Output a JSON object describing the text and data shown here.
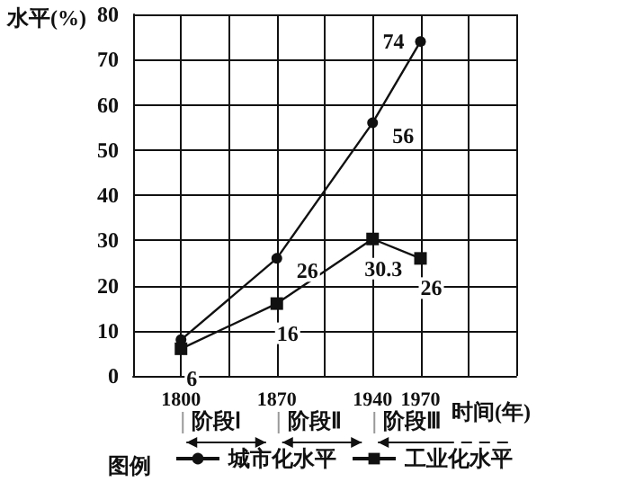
{
  "chart_data": {
    "type": "line",
    "ylabel": "水平(%)",
    "xlabel": "时间(年)",
    "legend_title": "图例",
    "categories": [
      null,
      "1800",
      null,
      "1870",
      null,
      "1940",
      "1970",
      null,
      null
    ],
    "series": [
      {
        "name": "城市化水平",
        "color": "#111111",
        "marker": "circle",
        "values": [
          null,
          8,
          null,
          26,
          null,
          56,
          74,
          null,
          null
        ],
        "value_labels": [
          null,
          null,
          null,
          "26",
          null,
          "56",
          "74",
          null,
          null
        ]
      },
      {
        "name": "工业化水平",
        "color": "#111111",
        "marker": "square",
        "values": [
          null,
          6,
          null,
          16,
          null,
          30.3,
          26,
          null,
          null
        ],
        "value_labels": [
          null,
          "6",
          null,
          "16",
          null,
          "30.3",
          "26",
          null,
          null
        ]
      }
    ],
    "ylim": [
      0,
      80
    ],
    "yticks": [
      0,
      10,
      20,
      30,
      40,
      50,
      60,
      70,
      80
    ],
    "grid": true,
    "legend": "bottom",
    "annotations": [
      "阶段Ⅰ",
      "阶段Ⅱ",
      "阶段Ⅲ"
    ]
  }
}
